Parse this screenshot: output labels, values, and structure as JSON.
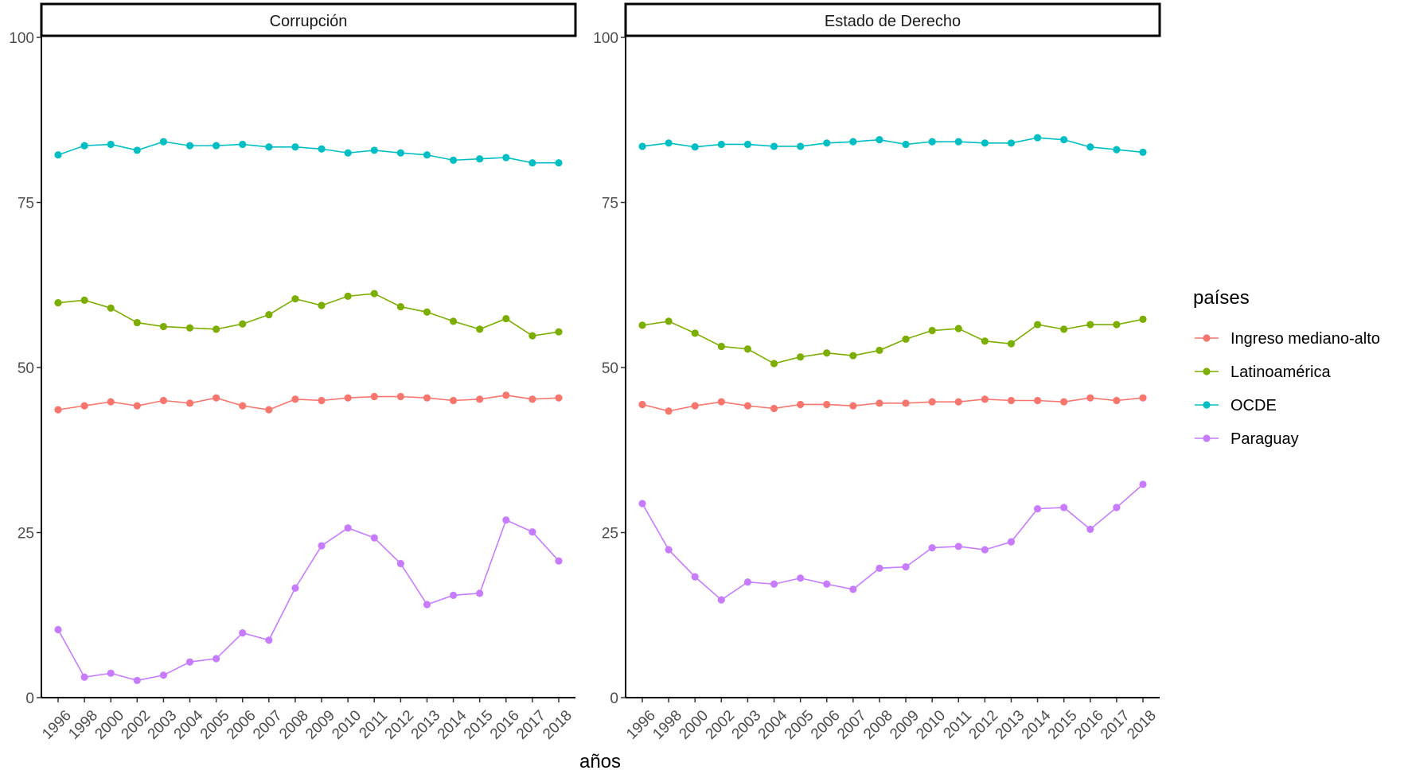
{
  "chart_data": {
    "type": "line",
    "x": [
      "1996",
      "1998",
      "2000",
      "2002",
      "2003",
      "2004",
      "2005",
      "2006",
      "2007",
      "2008",
      "2009",
      "2010",
      "2011",
      "2012",
      "2013",
      "2014",
      "2015",
      "2016",
      "2017",
      "2018"
    ],
    "xlabel": "años",
    "ylim": [
      0,
      100
    ],
    "yticks": [
      0,
      25,
      50,
      75,
      100
    ],
    "grid": false,
    "legend": {
      "title": "países",
      "position": "right",
      "entries": [
        "Ingreso mediano-alto",
        "Latinoamérica",
        "OCDE",
        "Paraguay"
      ]
    },
    "series_colors": {
      "Ingreso mediano-alto": "#F8766D",
      "Latinoamérica": "#7CAE00",
      "OCDE": "#00BFC4",
      "Paraguay": "#C77CFF"
    },
    "panels": [
      {
        "title": "Corrupción",
        "series": [
          {
            "name": "Ingreso mediano-alto",
            "values": [
              43.6,
              44.2,
              44.8,
              44.2,
              45.0,
              44.6,
              45.4,
              44.2,
              43.6,
              45.2,
              45.0,
              45.4,
              45.6,
              45.6,
              45.4,
              45.0,
              45.2,
              45.8,
              45.2,
              45.4
            ]
          },
          {
            "name": "Latinoamérica",
            "values": [
              59.8,
              60.2,
              59.0,
              56.8,
              56.2,
              56.0,
              55.8,
              56.6,
              58.0,
              60.4,
              59.4,
              60.8,
              61.2,
              59.2,
              58.4,
              57.0,
              55.8,
              57.4,
              54.8,
              55.4
            ]
          },
          {
            "name": "OCDE",
            "values": [
              82.2,
              83.6,
              83.8,
              82.9,
              84.2,
              83.6,
              83.6,
              83.8,
              83.4,
              83.4,
              83.1,
              82.5,
              82.9,
              82.5,
              82.2,
              81.4,
              81.6,
              81.8,
              81.0,
              81.0
            ]
          },
          {
            "name": "Paraguay",
            "values": [
              10.3,
              3.1,
              3.7,
              2.6,
              3.4,
              5.4,
              5.9,
              9.8,
              8.7,
              16.6,
              23.0,
              25.7,
              24.2,
              20.3,
              14.1,
              15.5,
              15.8,
              26.9,
              25.1,
              20.7
            ]
          }
        ]
      },
      {
        "title": "Estado de Derecho",
        "series": [
          {
            "name": "Ingreso mediano-alto",
            "values": [
              44.4,
              43.4,
              44.2,
              44.8,
              44.2,
              43.8,
              44.4,
              44.4,
              44.2,
              44.6,
              44.6,
              44.8,
              44.8,
              45.2,
              45.0,
              45.0,
              44.8,
              45.4,
              45.0,
              45.4
            ]
          },
          {
            "name": "Latinoamérica",
            "values": [
              56.4,
              57.0,
              55.2,
              53.2,
              52.8,
              50.6,
              51.6,
              52.2,
              51.8,
              52.6,
              54.3,
              55.6,
              55.9,
              54.0,
              53.6,
              56.5,
              55.8,
              56.5,
              56.5,
              57.3
            ]
          },
          {
            "name": "OCDE",
            "values": [
              83.5,
              84.0,
              83.4,
              83.8,
              83.8,
              83.5,
              83.5,
              84.0,
              84.2,
              84.5,
              83.8,
              84.2,
              84.2,
              84.0,
              84.0,
              84.8,
              84.5,
              83.4,
              83.0,
              82.6
            ]
          },
          {
            "name": "Paraguay",
            "values": [
              29.4,
              22.4,
              18.3,
              14.8,
              17.5,
              17.2,
              18.1,
              17.2,
              16.4,
              19.6,
              19.8,
              22.7,
              22.9,
              22.4,
              23.6,
              28.6,
              28.8,
              25.5,
              28.8,
              32.3
            ]
          }
        ]
      }
    ]
  }
}
